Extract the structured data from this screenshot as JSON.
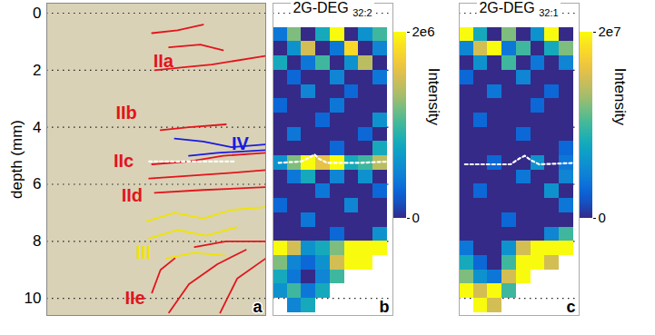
{
  "chart_data": [
    {
      "type": "image",
      "panel_label": "a",
      "ylabel": "depth (mm)",
      "xlim": [
        0,
        7.7
      ],
      "ylim": [
        -0.35,
        10.6
      ],
      "yticks": [
        0,
        2,
        4,
        6,
        8,
        10
      ],
      "grid": true,
      "tick_labels": "y",
      "traces": [
        {
          "group": "IIa",
          "color": "#e3141c",
          "points": [
            [
              3.7,
              0.7
            ],
            [
              4.6,
              0.6
            ],
            [
              5.5,
              0.4
            ]
          ]
        },
        {
          "group": "IIa",
          "color": "#e3141c",
          "points": [
            [
              4.3,
              1.2
            ],
            [
              5.4,
              1.1
            ],
            [
              6.2,
              1.3
            ]
          ]
        },
        {
          "group": "IIa",
          "color": "#e3141c",
          "points": [
            [
              3.8,
              2.0
            ],
            [
              4.8,
              1.9
            ],
            [
              5.8,
              1.8
            ],
            [
              7.7,
              1.5
            ]
          ]
        },
        {
          "group": "IIb",
          "color": "#e3141c",
          "points": [
            [
              4.0,
              4.1
            ],
            [
              5.0,
              4.0
            ],
            [
              6.3,
              3.9
            ]
          ]
        },
        {
          "group": "IV",
          "color": "#1a1ae0",
          "points": [
            [
              4.5,
              4.4
            ],
            [
              5.5,
              4.5
            ],
            [
              6.5,
              4.7
            ],
            [
              7.7,
              4.6
            ]
          ]
        },
        {
          "group": "IV",
          "color": "#1a1ae0",
          "points": [
            [
              5.0,
              5.0
            ],
            [
              6.0,
              4.9
            ],
            [
              7.7,
              4.8
            ]
          ]
        },
        {
          "group": "IIc",
          "color": "#e3141c",
          "points": [
            [
              3.7,
              5.3
            ],
            [
              5.0,
              5.2
            ],
            [
              6.2,
              5.0
            ],
            [
              7.7,
              4.9
            ]
          ]
        },
        {
          "group": "IId",
          "color": "#e3141c",
          "points": [
            [
              3.6,
              5.8
            ],
            [
              5.0,
              5.7
            ],
            [
              6.5,
              5.6
            ],
            [
              7.7,
              5.5
            ]
          ]
        },
        {
          "group": "IId",
          "color": "#e3141c",
          "points": [
            [
              3.8,
              6.3
            ],
            [
              5.5,
              6.2
            ],
            [
              7.7,
              6.1
            ]
          ]
        },
        {
          "group": "III",
          "color": "#f0e400",
          "points": [
            [
              3.5,
              7.3
            ],
            [
              4.5,
              7.0
            ],
            [
              5.5,
              7.2
            ],
            [
              6.5,
              6.9
            ],
            [
              7.7,
              6.8
            ]
          ]
        },
        {
          "group": "III",
          "color": "#f0e400",
          "points": [
            [
              3.6,
              7.9
            ],
            [
              4.6,
              7.6
            ],
            [
              5.6,
              7.8
            ],
            [
              6.7,
              7.5
            ]
          ]
        },
        {
          "group": "III",
          "color": "#f0e400",
          "points": [
            [
              4.2,
              8.6
            ],
            [
              5.2,
              8.4
            ],
            [
              6.3,
              8.5
            ]
          ]
        },
        {
          "group": "IIe",
          "color": "#e3141c",
          "points": [
            [
              5.2,
              8.2
            ],
            [
              6.3,
              8.0
            ],
            [
              7.7,
              8.0
            ]
          ]
        },
        {
          "group": "IIe",
          "color": "#e3141c",
          "points": [
            [
              4.3,
              10.5
            ],
            [
              5.0,
              9.5
            ],
            [
              6.0,
              8.8
            ],
            [
              7.0,
              8.3
            ]
          ]
        },
        {
          "group": "IIe",
          "color": "#e3141c",
          "points": [
            [
              6.1,
              10.5
            ],
            [
              6.7,
              9.3
            ],
            [
              7.7,
              8.6
            ]
          ]
        },
        {
          "group": "IIe",
          "color": "#e3141c",
          "points": [
            [
              3.7,
              9.8
            ],
            [
              4.0,
              9.0
            ],
            [
              4.5,
              8.6
            ]
          ]
        }
      ],
      "annotations": [
        {
          "text": "IIa",
          "x": 4.1,
          "y": 1.68,
          "color": "#e3141c"
        },
        {
          "text": "IIb",
          "x": 2.8,
          "y": 3.5,
          "color": "#e3141c"
        },
        {
          "text": "IV",
          "x": 6.8,
          "y": 4.6,
          "color": "#1a1ae0"
        },
        {
          "text": "IIc",
          "x": 2.7,
          "y": 5.2,
          "color": "#e3141c"
        },
        {
          "text": "IId",
          "x": 3.0,
          "y": 6.4,
          "color": "#e3141c"
        },
        {
          "text": "III",
          "x": 3.4,
          "y": 8.4,
          "color": "#f0e400"
        },
        {
          "text": "IIe",
          "x": 3.1,
          "y": 10.0,
          "color": "#e3141c"
        }
      ],
      "boundary": [
        [
          3.6,
          5.2
        ],
        [
          6.6,
          5.2
        ]
      ]
    },
    {
      "type": "heatmap",
      "title": "2G-DEG 32:2",
      "panel_label": "b",
      "xlim": [
        0,
        4.2
      ],
      "ylim": [
        -0.35,
        10.6
      ],
      "yticks": [
        0,
        2,
        4,
        6,
        8,
        10
      ],
      "grid": true,
      "tick_labels": false,
      "x_bins": [
        0,
        0.5,
        1.0,
        1.5,
        2.0,
        2.5,
        3.0,
        3.5,
        4.0
      ],
      "y_bins": [
        0.5,
        1.0,
        1.5,
        2.0,
        2.5,
        3.0,
        3.5,
        4.0,
        4.5,
        5.0,
        5.5,
        6.0,
        6.5,
        7.0,
        7.5,
        8.0,
        8.5,
        9.0,
        9.5,
        10.0,
        10.5
      ],
      "cells": [
        [
          400000.0,
          1200000.0,
          0,
          800000.0,
          2000000.0,
          0,
          600000.0,
          1000000.0
        ],
        [
          0,
          600000.0,
          1500000.0,
          0,
          400000.0,
          1800000.0,
          0,
          500000.0
        ],
        [
          800000.0,
          0,
          400000.0,
          1000000.0,
          0,
          600000.0,
          1400000.0,
          0
        ],
        [
          0,
          300000.0,
          0,
          0,
          500000.0,
          0,
          0,
          400000.0
        ],
        [
          0,
          0,
          500000.0,
          0,
          0,
          300000.0,
          0,
          0
        ],
        [
          300000.0,
          0,
          0,
          0,
          400000.0,
          0,
          0,
          0
        ],
        [
          0,
          0,
          0,
          300000.0,
          0,
          0,
          0,
          600000.0
        ],
        [
          0,
          400000.0,
          0,
          0,
          0,
          0,
          300000.0,
          0
        ],
        [
          0,
          0,
          0,
          0,
          300000.0,
          0,
          0,
          800000.0
        ],
        [
          600000.0,
          1200000.0,
          2000000.0,
          1600000.0,
          2000000.0,
          800000.0,
          1000000.0,
          1400000.0
        ],
        [
          0,
          400000.0,
          800000.0,
          0,
          500000.0,
          0,
          600000.0,
          0
        ],
        [
          0,
          0,
          0,
          400000.0,
          0,
          0,
          0,
          300000.0
        ],
        [
          300000.0,
          0,
          0,
          0,
          0,
          500000.0,
          0,
          0
        ],
        [
          0,
          0,
          400000.0,
          0,
          0,
          0,
          0,
          0
        ],
        [
          0,
          0,
          0,
          0,
          300000.0,
          0,
          0,
          600000.0
        ],
        [
          2000000.0,
          1500000.0,
          600000.0,
          800000.0,
          1200000.0,
          2000000.0,
          2000000.0,
          2000000.0
        ],
        [
          1200000.0,
          500000.0,
          300000.0,
          600000.0,
          1500000.0,
          2000000.0,
          2000000.0,
          null
        ],
        [
          800000.0,
          400000.0,
          0,
          500000.0,
          1000000.0,
          null,
          null,
          null
        ],
        [
          600000.0,
          1000000.0,
          400000.0,
          800000.0,
          null,
          null,
          null,
          null
        ],
        [
          null,
          500000.0,
          800000.0,
          null,
          null,
          null,
          null,
          null
        ]
      ],
      "boundary": [
        [
          0.2,
          5.25
        ],
        [
          1.0,
          5.2
        ],
        [
          1.3,
          5.05
        ],
        [
          1.45,
          4.95
        ],
        [
          1.6,
          5.1
        ],
        [
          1.9,
          5.25
        ],
        [
          3.0,
          5.25
        ],
        [
          4.1,
          5.2
        ]
      ],
      "colorbar": {
        "label": "Intensity",
        "range": [
          0,
          2000000.0
        ],
        "ticks": [
          0,
          {
            "value": 2000000.0,
            "label": "2e6"
          }
        ]
      }
    },
    {
      "type": "heatmap",
      "title": "2G-DEG 32:1",
      "panel_label": "c",
      "xlim": [
        0,
        4.2
      ],
      "ylim": [
        -0.35,
        10.6
      ],
      "yticks": [
        0,
        2,
        4,
        6,
        8,
        10
      ],
      "grid": true,
      "tick_labels": false,
      "x_bins": [
        0,
        0.5,
        1.0,
        1.5,
        2.0,
        2.5,
        3.0,
        3.5,
        4.0
      ],
      "y_bins": [
        0.5,
        1.0,
        1.5,
        2.0,
        2.5,
        3.0,
        3.5,
        4.0,
        4.5,
        5.0,
        5.5,
        6.0,
        6.5,
        7.0,
        7.5,
        8.0,
        8.5,
        9.0,
        9.5,
        10.0,
        10.5
      ],
      "cells": [
        [
          20000000.0,
          8000000.0,
          0,
          12000000.0,
          0,
          6000000.0,
          20000000.0,
          0
        ],
        [
          5000000.0,
          15000000.0,
          20000000.0,
          4000000.0,
          10000000.0,
          0,
          8000000.0,
          12000000.0
        ],
        [
          0,
          6000000.0,
          0,
          10000000.0,
          0,
          4000000.0,
          0,
          5000000.0
        ],
        [
          3000000.0,
          0,
          0,
          0,
          5000000.0,
          0,
          0,
          0
        ],
        [
          0,
          0,
          4000000.0,
          0,
          0,
          0,
          3000000.0,
          0
        ],
        [
          0,
          0,
          0,
          0,
          0,
          3000000.0,
          0,
          0
        ],
        [
          0,
          3000000.0,
          0,
          0,
          0,
          0,
          0,
          0
        ],
        [
          0,
          0,
          0,
          0,
          3000000.0,
          0,
          0,
          0
        ],
        [
          0,
          0,
          0,
          0,
          0,
          0,
          0,
          3000000.0
        ],
        [
          0,
          0,
          3000000.0,
          0,
          0,
          6000000.0,
          0,
          4000000.0
        ],
        [
          0,
          0,
          0,
          0,
          4000000.0,
          0,
          0,
          5000000.0
        ],
        [
          0,
          3000000.0,
          0,
          0,
          0,
          0,
          6000000.0,
          0
        ],
        [
          0,
          0,
          0,
          0,
          0,
          0,
          0,
          4000000.0
        ],
        [
          0,
          0,
          0,
          3000000.0,
          0,
          0,
          0,
          0
        ],
        [
          0,
          0,
          0,
          0,
          0,
          0,
          5000000.0,
          10000000.0
        ],
        [
          4000000.0,
          0,
          0,
          6000000.0,
          15000000.0,
          20000000.0,
          20000000.0,
          20000000.0
        ],
        [
          8000000.0,
          3000000.0,
          0,
          10000000.0,
          20000000.0,
          20000000.0,
          15000000.0,
          null
        ],
        [
          12000000.0,
          6000000.0,
          4000000.0,
          15000000.0,
          20000000.0,
          null,
          null,
          null
        ],
        [
          20000000.0,
          15000000.0,
          20000000.0,
          10000000.0,
          null,
          null,
          null,
          null
        ],
        [
          null,
          20000000.0,
          15000000.0,
          null,
          null,
          null,
          null,
          null
        ]
      ],
      "boundary": [
        [
          0.2,
          5.3
        ],
        [
          1.8,
          5.3
        ],
        [
          2.1,
          5.1
        ],
        [
          2.3,
          5.0
        ],
        [
          2.5,
          5.15
        ],
        [
          2.8,
          5.3
        ],
        [
          4.1,
          5.25
        ]
      ],
      "colorbar": {
        "label": "Intensity",
        "range": [
          0,
          20000000.0
        ],
        "ticks": [
          0,
          {
            "value": 20000000.0,
            "label": "2e7"
          }
        ]
      }
    }
  ]
}
